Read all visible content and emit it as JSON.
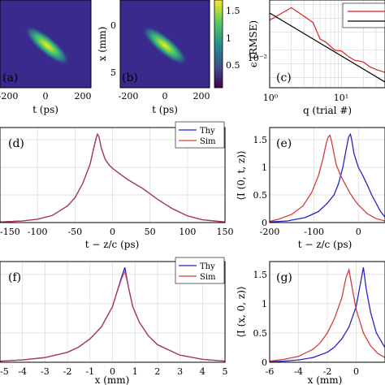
{
  "panels": {
    "a": {
      "label": "(a)",
      "xlabel": "t (ps)",
      "xticks": [
        "-200",
        "0",
        "200"
      ],
      "yticks": []
    },
    "b": {
      "label": "(b)",
      "xlabel": "t (ps)",
      "ylabel": "x (mm)",
      "xticks": [
        "-200",
        "0",
        "200"
      ],
      "yticks": [
        "0",
        "5"
      ]
    },
    "colorbar": {
      "ticks": [
        "1.5",
        "1",
        "0.5"
      ],
      "colormap": [
        "#440154",
        "#3b528b",
        "#21918c",
        "#5ec962",
        "#fde725"
      ]
    },
    "c": {
      "label": "(c)",
      "xlabel": "q (trial #)",
      "ylabel": "ϵ (RMSE)",
      "xticks": [
        "10⁰",
        "10¹"
      ],
      "yticks": [
        "10⁻²"
      ]
    },
    "d": {
      "label": "(d)",
      "xlabel": "t − z/c (ps)",
      "xticks": [
        "-150",
        "-100",
        "-50",
        "0",
        "50",
        "100",
        "150"
      ],
      "yticks": []
    },
    "e": {
      "label": "(e)",
      "xlabel": "t − z/c (ps)",
      "ylabel": "⟨I (0, t, z)⟩",
      "xticks": [
        "-200",
        "-100",
        "0"
      ],
      "yticks": [
        "0",
        "0.5",
        "1",
        "1.5"
      ]
    },
    "f": {
      "label": "(f)",
      "xlabel": "x (mm)",
      "xticks": [
        "-5",
        "-4",
        "-3",
        "-2",
        "-1",
        "0",
        "1",
        "2",
        "3",
        "4",
        "5"
      ],
      "yticks": []
    },
    "g": {
      "label": "(g)",
      "xlabel": "x (mm)",
      "ylabel": "⟨I (x, 0, z)⟩",
      "xticks": [
        "-6",
        "-4",
        "-2",
        "0"
      ],
      "yticks": [
        "0",
        "0.5",
        "1",
        "1.5"
      ]
    }
  },
  "legend": {
    "items": [
      "Thy",
      "Sim"
    ]
  },
  "colors": {
    "thy": "#2424c8",
    "sim": "#d43c3c",
    "convergence": "#d42020",
    "fit": "#000000",
    "grid": "#d9d9d9"
  },
  "chart_data": [
    {
      "type": "heatmap",
      "panel": "a",
      "xlabel": "t (ps)",
      "xlim": [
        -260,
        260
      ],
      "ylim": [
        9,
        -1
      ],
      "description_values": {
        "peak_t": 0,
        "peak_x": 3,
        "max": 1.6
      }
    },
    {
      "type": "heatmap",
      "panel": "b",
      "xlabel": "t (ps)",
      "ylabel": "x (mm)",
      "xlim": [
        -260,
        260
      ],
      "ylim": [
        9,
        -1
      ],
      "colorbar_range": [
        0,
        1.65
      ]
    },
    {
      "type": "line",
      "panel": "c",
      "xlabel": "q (trial #)",
      "ylabel": "ϵ (RMSE)",
      "x_scale": "log",
      "y_scale": "log",
      "xlim": [
        1,
        40
      ],
      "ylim": [
        0.003,
        0.25
      ],
      "series": [
        {
          "x": [
            1,
            2,
            3,
            4,
            5,
            6,
            8,
            10,
            12,
            15,
            20,
            25,
            30,
            40
          ],
          "y": [
            0.09,
            0.17,
            0.11,
            0.08,
            0.035,
            0.03,
            0.02,
            0.019,
            0.015,
            0.012,
            0.011,
            0.0085,
            0.0075,
            0.0065
          ]
        },
        {
          "x": [
            1,
            40
          ],
          "y": [
            0.13,
            0.004
          ]
        }
      ]
    },
    {
      "type": "line",
      "panel": "d",
      "xlabel": "t − z/c (ps)",
      "xlim": [
        -150,
        150
      ],
      "ylim": [
        0,
        1.72
      ],
      "series": [
        {
          "name": "Thy",
          "x": [
            -150,
            -120,
            -100,
            -80,
            -60,
            -50,
            -40,
            -30,
            -25,
            -22,
            -20,
            -18,
            -15,
            -10,
            -5,
            0,
            10,
            20,
            30,
            40,
            50,
            60,
            80,
            100,
            120,
            150
          ],
          "y": [
            0.01,
            0.03,
            0.06,
            0.13,
            0.3,
            0.45,
            0.7,
            1.05,
            1.35,
            1.52,
            1.6,
            1.55,
            1.35,
            1.15,
            1.05,
            0.98,
            0.88,
            0.78,
            0.7,
            0.62,
            0.52,
            0.42,
            0.25,
            0.12,
            0.05,
            0.01
          ]
        },
        {
          "name": "Sim",
          "x": [
            -150,
            -120,
            -100,
            -80,
            -60,
            -50,
            -40,
            -30,
            -25,
            -22,
            -20,
            -18,
            -15,
            -10,
            -5,
            0,
            10,
            20,
            30,
            40,
            50,
            60,
            80,
            100,
            120,
            150
          ],
          "y": [
            0.01,
            0.03,
            0.06,
            0.13,
            0.3,
            0.45,
            0.7,
            1.05,
            1.35,
            1.52,
            1.6,
            1.55,
            1.35,
            1.15,
            1.05,
            0.98,
            0.88,
            0.78,
            0.7,
            0.62,
            0.52,
            0.42,
            0.25,
            0.12,
            0.05,
            0.01
          ]
        }
      ]
    },
    {
      "type": "line",
      "panel": "e",
      "xlabel": "t − z/c (ps)",
      "ylabel": "⟨I (0, t, z)⟩",
      "xlim": [
        -200,
        60
      ],
      "ylim": [
        0,
        1.72
      ],
      "series": [
        {
          "name": "Thy",
          "x": [
            -200,
            -160,
            -120,
            -90,
            -70,
            -55,
            -45,
            -35,
            -28,
            -22,
            -18,
            -15,
            -10,
            0,
            10,
            20,
            30,
            40,
            50,
            60
          ],
          "y": [
            0.01,
            0.03,
            0.09,
            0.2,
            0.35,
            0.5,
            0.7,
            1.0,
            1.3,
            1.55,
            1.6,
            1.5,
            1.25,
            1.0,
            0.85,
            0.68,
            0.5,
            0.35,
            0.2,
            0.1
          ]
        },
        {
          "name": "Sim",
          "x": [
            -200,
            -180,
            -150,
            -125,
            -105,
            -90,
            -80,
            -72,
            -68,
            -64,
            -60,
            -55,
            -50,
            -40,
            -30,
            -20,
            -10,
            0,
            20,
            40,
            60
          ],
          "y": [
            0.02,
            0.06,
            0.15,
            0.3,
            0.55,
            0.85,
            1.15,
            1.45,
            1.55,
            1.58,
            1.45,
            1.25,
            1.05,
            0.85,
            0.7,
            0.55,
            0.42,
            0.32,
            0.16,
            0.07,
            0.03
          ]
        }
      ]
    },
    {
      "type": "line",
      "panel": "f",
      "xlabel": "x (mm)",
      "xlim": [
        -5,
        5
      ],
      "ylim": [
        0,
        1.72
      ],
      "series": [
        {
          "name": "Thy",
          "x": [
            -5,
            -4,
            -3,
            -2,
            -1.5,
            -1,
            -0.5,
            0,
            0.2,
            0.4,
            0.55,
            0.7,
            0.9,
            1.2,
            1.6,
            2,
            3,
            4,
            5
          ],
          "y": [
            0.02,
            0.04,
            0.08,
            0.17,
            0.26,
            0.4,
            0.6,
            0.95,
            1.2,
            1.45,
            1.62,
            1.3,
            0.95,
            0.68,
            0.45,
            0.3,
            0.12,
            0.05,
            0.02
          ]
        },
        {
          "name": "Sim",
          "x": [
            -5,
            -4,
            -3,
            -2,
            -1.5,
            -1,
            -0.5,
            0,
            0.2,
            0.4,
            0.55,
            0.7,
            0.9,
            1.2,
            1.6,
            2,
            3,
            4,
            5
          ],
          "y": [
            0.02,
            0.04,
            0.08,
            0.17,
            0.26,
            0.4,
            0.6,
            0.95,
            1.2,
            1.42,
            1.55,
            1.3,
            0.95,
            0.68,
            0.45,
            0.3,
            0.12,
            0.05,
            0.02
          ]
        }
      ]
    },
    {
      "type": "line",
      "panel": "g",
      "xlabel": "x (mm)",
      "ylabel": "⟨I (x, 0, z)⟩",
      "xlim": [
        -6,
        2
      ],
      "ylim": [
        0,
        1.72
      ],
      "series": [
        {
          "name": "Thy",
          "x": [
            -6,
            -5,
            -4,
            -3,
            -2,
            -1.5,
            -1,
            -0.5,
            0,
            0.3,
            0.5,
            0.7,
            1,
            1.4,
            2
          ],
          "y": [
            0.01,
            0.02,
            0.04,
            0.08,
            0.17,
            0.26,
            0.4,
            0.6,
            0.95,
            1.35,
            1.62,
            1.25,
            0.85,
            0.5,
            0.25
          ]
        },
        {
          "name": "Sim",
          "x": [
            -6,
            -5,
            -4,
            -3,
            -2.5,
            -2,
            -1.5,
            -1,
            -0.7,
            -0.5,
            -0.3,
            0,
            0.5,
            1,
            1.5,
            2
          ],
          "y": [
            0.02,
            0.05,
            0.1,
            0.22,
            0.33,
            0.5,
            0.75,
            1.1,
            1.45,
            1.58,
            1.3,
            0.9,
            0.5,
            0.28,
            0.15,
            0.08
          ]
        }
      ]
    }
  ]
}
